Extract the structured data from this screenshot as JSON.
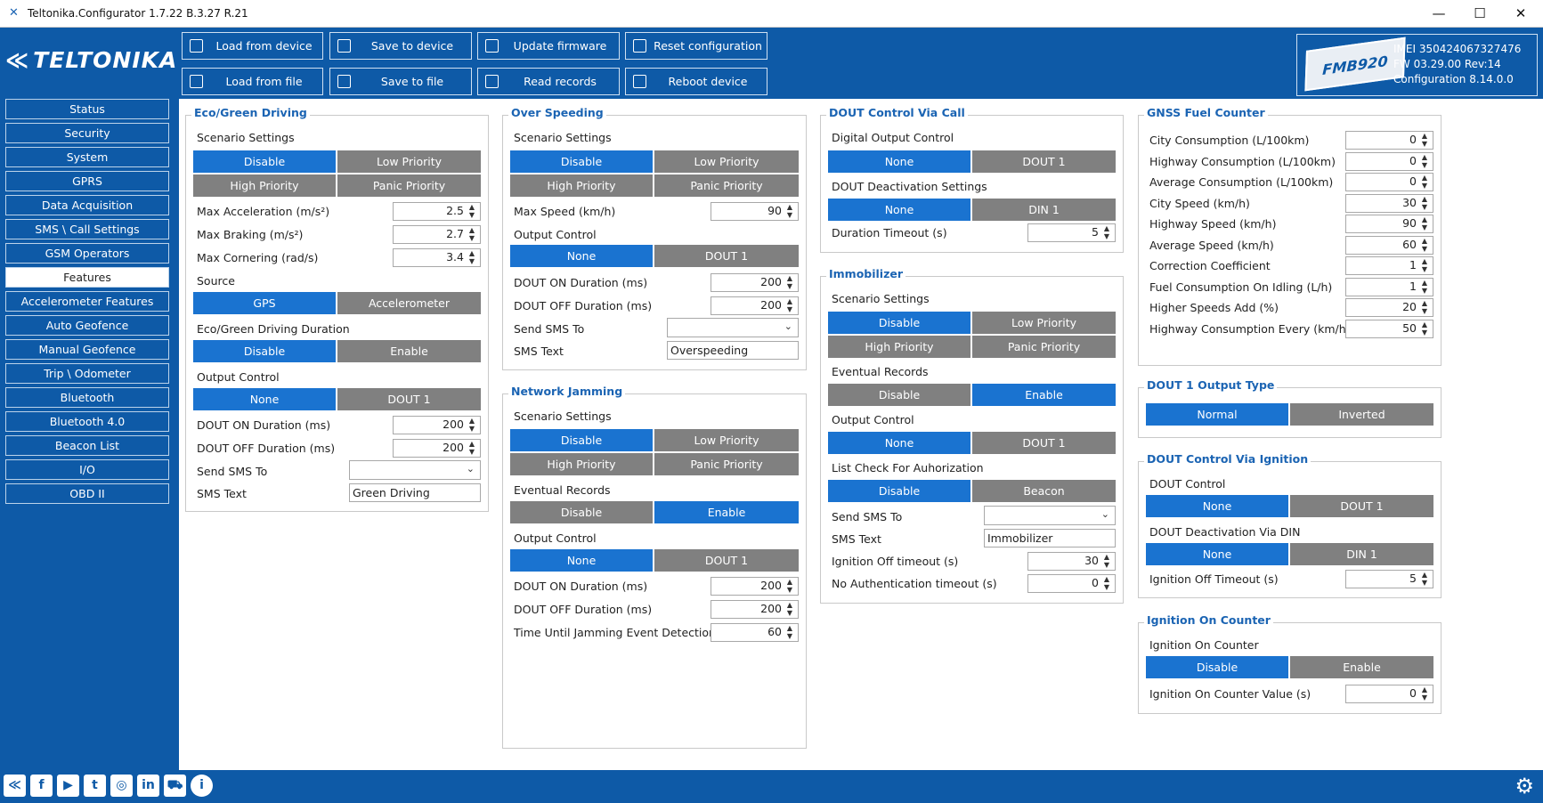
{
  "window": {
    "title": "Teltonika.Configurator 1.7.22 B.3.27 R.21",
    "minimize": "—",
    "maximize": "☐",
    "close": "✕"
  },
  "brand": {
    "logo": "TELTONIKA",
    "device_model": "FMB920",
    "imei": "IMEI  350424067327476",
    "fw": "FW  03.29.00 Rev:14",
    "configuration": "Configuration  8.14.0.0"
  },
  "toolbar": {
    "load_device": "Load from device",
    "save_device": "Save to device",
    "update_fw": "Update firmware",
    "reset_config": "Reset configuration",
    "load_file": "Load from file",
    "save_file": "Save to file",
    "read_records": "Read records",
    "reboot": "Reboot device"
  },
  "sidebar": [
    "Status",
    "Security",
    "System",
    "GPRS",
    "Data Acquisition",
    "SMS \\ Call Settings",
    "GSM Operators",
    "Features",
    "Accelerometer Features",
    "Auto Geofence",
    "Manual Geofence",
    "Trip \\ Odometer",
    "Bluetooth",
    "Bluetooth 4.0",
    "Beacon List",
    "I/O",
    "OBD II"
  ],
  "common": {
    "disable": "Disable",
    "enable": "Enable",
    "low": "Low Priority",
    "high": "High Priority",
    "panic": "Panic Priority",
    "none": "None",
    "dout1": "DOUT 1",
    "din1": "DIN 1",
    "scenario": "Scenario Settings",
    "output_control": "Output Control",
    "dout_on": "DOUT ON Duration   (ms)",
    "dout_off": "DOUT OFF Duration   (ms)",
    "send_sms": "Send SMS To",
    "sms_text": "SMS Text",
    "eventual": "Eventual Records"
  },
  "eco": {
    "title": "Eco/Green Driving",
    "max_acc": "Max Acceleration   (m/s²)",
    "max_acc_v": "2.5",
    "max_brk": "Max Braking   (m/s²)",
    "max_brk_v": "2.7",
    "max_cor": "Max Cornering   (rad/s)",
    "max_cor_v": "3.4",
    "source": "Source",
    "gps": "GPS",
    "accel": "Accelerometer",
    "duration": "Eco/Green Driving Duration",
    "on_v": "200",
    "off_v": "200",
    "sms_v": "Green Driving"
  },
  "overspeed": {
    "title": "Over Speeding",
    "max_speed": "Max Speed   (km/h)",
    "max_speed_v": "90",
    "on_v": "200",
    "off_v": "200",
    "sms_v": "Overspeeding"
  },
  "jamming": {
    "title": "Network Jamming",
    "on_v": "200",
    "off_v": "200",
    "time": "Time Until Jamming Event Detection   (s)",
    "time_v": "60"
  },
  "doutcall": {
    "title": "DOUT Control Via Call",
    "digital": "Digital Output Control",
    "deact": "DOUT Deactivation Settings",
    "timeout": "Duration Timeout   (s)",
    "timeout_v": "5"
  },
  "immob": {
    "title": "Immobilizer",
    "list": "List Check For Auhorization",
    "beacon": "Beacon",
    "sms_v": "Immobilizer",
    "ign_off": "Ignition Off timeout   (s)",
    "ign_off_v": "30",
    "noauth": "No Authentication timeout   (s)",
    "noauth_v": "0"
  },
  "gnss": {
    "title": "GNSS Fuel Counter",
    "rows": [
      {
        "label": "City Consumption   (L/100km)",
        "value": "0"
      },
      {
        "label": "Highway Consumption   (L/100km)",
        "value": "0"
      },
      {
        "label": "Average Consumption   (L/100km)",
        "value": "0"
      },
      {
        "label": "City Speed   (km/h)",
        "value": "30"
      },
      {
        "label": "Highway Speed   (km/h)",
        "value": "90"
      },
      {
        "label": "Average Speed   (km/h)",
        "value": "60"
      },
      {
        "label": "Correction Coefficient",
        "value": "1"
      },
      {
        "label": "Fuel Consumption On Idling   (L/h)",
        "value": "1"
      },
      {
        "label": "Higher Speeds Add   (%)",
        "value": "20"
      },
      {
        "label": "Highway Consumption Every   (km/h)",
        "value": "50"
      }
    ]
  },
  "dout1type": {
    "title": "DOUT 1 Output Type",
    "normal": "Normal",
    "inverted": "Inverted"
  },
  "doutign": {
    "title": "DOUT Control Via Ignition",
    "dout_control": "DOUT Control",
    "deact": "DOUT Deactivation Via DIN",
    "ign_off": "Ignition Off Timeout   (s)",
    "ign_off_v": "5"
  },
  "igncounter": {
    "title": "Ignition On Counter",
    "label": "Ignition On Counter",
    "value_label": "Ignition On Counter Value   (s)",
    "value": "0"
  },
  "colors": {
    "accent": "#1a73d0",
    "brand": "#0e5aa7",
    "inactive": "#808080"
  },
  "footer_icons": [
    "teltonika-icon",
    "facebook-icon",
    "youtube-icon",
    "twitter-icon",
    "instagram-icon",
    "linkedin-icon",
    "car-icon",
    "info-icon",
    "gear-icon"
  ]
}
